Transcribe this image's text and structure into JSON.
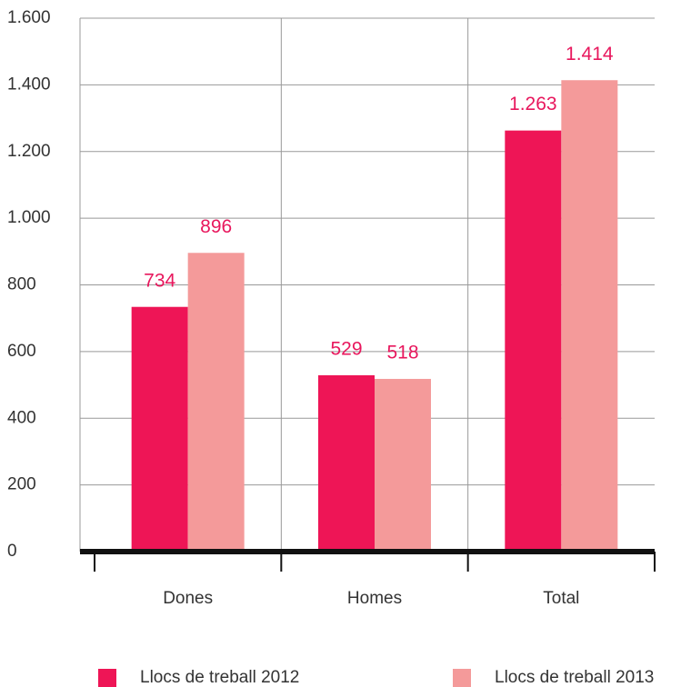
{
  "chart_data": {
    "type": "bar",
    "categories": [
      "Dones",
      "Homes",
      "Total"
    ],
    "series": [
      {
        "name": "Llocs de treball 2012",
        "color": "#ee1556",
        "values": [
          734,
          529,
          1263
        ],
        "value_labels": [
          "734",
          "529",
          "1.263"
        ]
      },
      {
        "name": "Llocs de treball 2013",
        "color": "#f49a9a",
        "values": [
          896,
          518,
          1414
        ],
        "value_labels": [
          "896",
          "518",
          "1.414"
        ]
      }
    ],
    "ylim": [
      0,
      1600
    ],
    "yticks": [
      0,
      200,
      400,
      600,
      800,
      {
        "value": 1000,
        "label": "1.000"
      },
      {
        "value": 1200,
        "label": "1.200"
      },
      {
        "value": 1400,
        "label": "1.400"
      },
      {
        "value": 1600,
        "label": "1.600"
      }
    ],
    "grid": true,
    "legend": "bottom"
  }
}
